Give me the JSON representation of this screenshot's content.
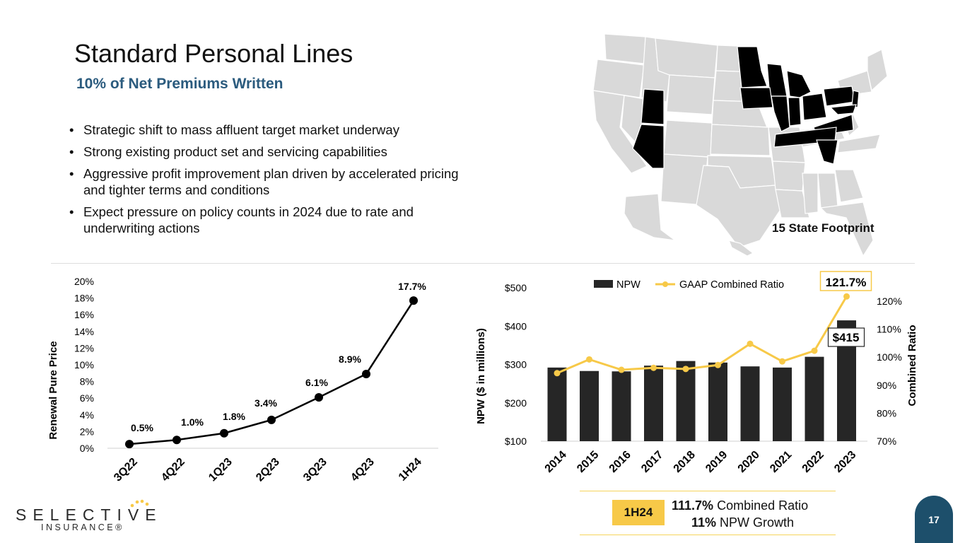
{
  "header": {
    "title": "Standard Personal Lines",
    "subtitle": "10% of Net Premiums Written"
  },
  "bullets": [
    "Strategic shift to mass affluent target market underway",
    "Strong existing product set and servicing capabilities",
    "Aggressive profit improvement plan driven by accelerated pricing and tighter terms and conditions",
    "Expect pressure on policy counts in 2024 due to rate and underwriting actions"
  ],
  "map": {
    "caption": "15 State Footprint",
    "highlighted_states": [
      "AZ",
      "UT",
      "MN",
      "WI",
      "IA",
      "IL",
      "IN",
      "MI",
      "OH",
      "PA",
      "NJ",
      "MD",
      "VA",
      "TN",
      "SC"
    ]
  },
  "colors": {
    "title_blue": "#2b5b7e",
    "bar": "#262626",
    "line_yellow": "#f7c948",
    "footer_badge": "#1d4f6b",
    "map_gray": "#d9d9d9",
    "map_highlight": "#000000"
  },
  "chart_data": [
    {
      "type": "line",
      "ylabel": "Renewal Pure Price",
      "categories": [
        "3Q22",
        "4Q22",
        "1Q23",
        "2Q23",
        "3Q23",
        "4Q23",
        "1H24"
      ],
      "values": [
        0.5,
        1.0,
        1.8,
        3.4,
        6.1,
        8.9,
        17.7
      ],
      "data_labels": [
        "0.5%",
        "1.0%",
        "1.8%",
        "3.4%",
        "6.1%",
        "8.9%",
        "17.7%"
      ],
      "ylim": [
        0,
        20
      ],
      "yticks": [
        "0%",
        "2%",
        "4%",
        "6%",
        "8%",
        "10%",
        "12%",
        "14%",
        "16%",
        "18%",
        "20%"
      ],
      "series_color": "#000000"
    },
    {
      "type": "bar",
      "categories": [
        "2014",
        "2015",
        "2016",
        "2017",
        "2018",
        "2019",
        "2020",
        "2021",
        "2022",
        "2023"
      ],
      "ylabel": "NPW ($ in millions)",
      "y2label": "Combined Ratio",
      "ylim": [
        100,
        500
      ],
      "y2lim": [
        70,
        125
      ],
      "yticks": [
        "$100",
        "$200",
        "$300",
        "$400",
        "$500"
      ],
      "y2ticks": [
        "70%",
        "80%",
        "90%",
        "100%",
        "110%",
        "120%"
      ],
      "legend_position": "top",
      "series": [
        {
          "name": "NPW",
          "type": "bar",
          "axis": "left",
          "values": [
            292,
            283,
            282,
            297,
            309,
            305,
            295,
            292,
            320,
            415
          ]
        },
        {
          "name": "GAAP Combined Ratio",
          "type": "line",
          "axis": "right",
          "values": [
            94.3,
            99.2,
            95.5,
            96.2,
            95.8,
            97.2,
            104.8,
            98.5,
            102.3,
            121.7
          ]
        }
      ],
      "callouts": {
        "ratio_last": "121.7%",
        "npw_last": "$415"
      }
    }
  ],
  "summary": {
    "tag": "1H24",
    "line1_value": "111.7%",
    "line1_text": " Combined Ratio",
    "line2_value": "11%",
    "line2_text": " NPW Growth"
  },
  "footer": {
    "logo_main": "SELECTIVE",
    "logo_sub": "INSURANCE®",
    "page_number": "17"
  }
}
